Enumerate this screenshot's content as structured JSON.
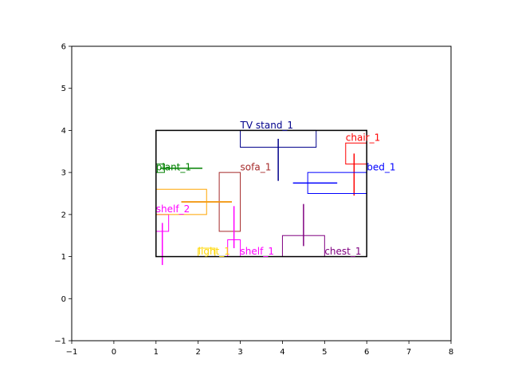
{
  "chart_data": {
    "type": "scatter",
    "xlim": [
      -1,
      8
    ],
    "ylim": [
      -1,
      6
    ],
    "x_ticks": [
      "−1",
      "0",
      "1",
      "2",
      "3",
      "4",
      "5",
      "6",
      "7",
      "8"
    ],
    "y_ticks": [
      "−1",
      "0",
      "1",
      "2",
      "3",
      "4",
      "5",
      "6"
    ],
    "grid": false,
    "room": {
      "x0": 1,
      "y0": 1,
      "x1": 6,
      "y1": 4,
      "color": "#000000"
    },
    "objects": [
      {
        "label": "TV stand_1",
        "color": "#00008b",
        "box": [
          3.0,
          3.6,
          4.8,
          4.0
        ],
        "hline": [
          3.8,
          3.8,
          3.8
        ],
        "vline": [
          3.9,
          2.8,
          3.8
        ],
        "label_pos": [
          3.0,
          4.05
        ]
      },
      {
        "label": "chair_1",
        "color": "#ff0000",
        "box": [
          5.5,
          3.2,
          6.0,
          3.7
        ],
        "hline": null,
        "vline": [
          5.7,
          2.45,
          3.45
        ],
        "label_pos": [
          5.5,
          3.75
        ]
      },
      {
        "label": "bed_1",
        "color": "#0000ff",
        "box": [
          4.6,
          2.5,
          6.0,
          3.0
        ],
        "hline": [
          2.75,
          4.25,
          5.3
        ],
        "vline": null,
        "label_pos": [
          6.0,
          3.05
        ]
      },
      {
        "label": "plant_1",
        "color": "#008000",
        "box": [
          1.0,
          3.0,
          1.2,
          3.2
        ],
        "hline": [
          3.1,
          1.1,
          2.1
        ],
        "vline": null,
        "label_pos": [
          1.0,
          3.05
        ]
      },
      {
        "label": "sofa_1",
        "color": "#a52a2a",
        "box": [
          2.5,
          1.6,
          3.0,
          3.0
        ],
        "hline": [
          2.3,
          1.6,
          2.8
        ],
        "vline": null,
        "label_pos": [
          3.0,
          3.05
        ]
      },
      {
        "label": "shelf_2",
        "color": "#ff00ff",
        "box": [
          1.0,
          1.6,
          1.3,
          2.0
        ],
        "hline": null,
        "vline": [
          1.15,
          0.8,
          1.8
        ],
        "label_pos": [
          1.0,
          2.05
        ]
      },
      {
        "label": "",
        "color": "#ffa500",
        "box": [
          1.0,
          2.0,
          2.2,
          2.6
        ],
        "hline": [
          2.3,
          1.6,
          2.8
        ],
        "vline": null,
        "label_pos": null
      },
      {
        "label": "light_1",
        "color": "#ffd700",
        "box": [
          2.0,
          1.0,
          2.4,
          1.2
        ],
        "hline": null,
        "vline": null,
        "label_pos": [
          2.0,
          1.05
        ]
      },
      {
        "label": "shelf_1",
        "color": "#ff00ff",
        "box": [
          2.7,
          1.0,
          3.0,
          1.4
        ],
        "hline": null,
        "vline": [
          2.85,
          1.2,
          2.2
        ],
        "label_pos": [
          3.0,
          1.05
        ]
      },
      {
        "label": "chest_1",
        "color": "#800080",
        "box": [
          4.0,
          1.0,
          5.0,
          1.5
        ],
        "hline": null,
        "vline": [
          4.5,
          1.25,
          2.25
        ],
        "label_pos": [
          5.0,
          1.05
        ]
      }
    ]
  }
}
